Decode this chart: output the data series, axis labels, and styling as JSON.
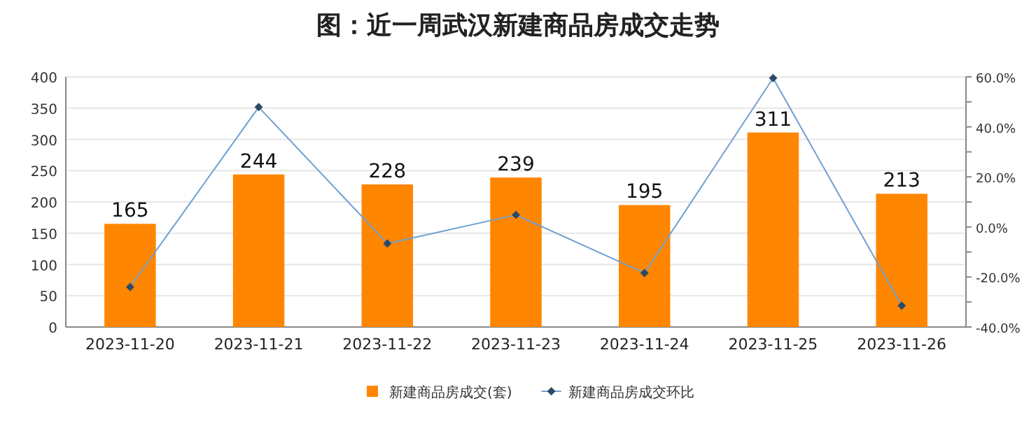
{
  "chart_data": {
    "type": "bar",
    "title": "图：近一周武汉新建商品房成交走势",
    "categories": [
      "2023-11-20",
      "2023-11-21",
      "2023-11-22",
      "2023-11-23",
      "2023-11-24",
      "2023-11-25",
      "2023-11-26"
    ],
    "series": [
      {
        "name": "新建商品房成交(套)",
        "color": "#ff8600",
        "values": [
          165,
          244,
          228,
          239,
          195,
          311,
          213
        ],
        "value_labels": [
          "165",
          "244",
          "228",
          "239",
          "195",
          "311",
          "213"
        ]
      },
      {
        "name": "新建商品房成交环比",
        "type": "line",
        "axis": "y2",
        "color": "#6fa0d0",
        "marker": "diamond",
        "values": [
          -24,
          47.9,
          -6.6,
          4.8,
          -18.4,
          59.5,
          -31.5
        ]
      }
    ],
    "ylim": [
      0,
      400
    ],
    "yticks": [
      0,
      50,
      100,
      150,
      200,
      250,
      300,
      350,
      400
    ],
    "y2lim": [
      -40,
      60
    ],
    "y2ticks": [
      {
        "value": -40,
        "label": "-40.0%"
      },
      {
        "value": -30,
        "label": null
      },
      {
        "value": -20,
        "label": "-20.0%"
      },
      {
        "value": -10,
        "label": null
      },
      {
        "value": 0,
        "label": "0.0%"
      },
      {
        "value": 10,
        "label": null
      },
      {
        "value": 20,
        "label": "20.0%"
      },
      {
        "value": 30,
        "label": null
      },
      {
        "value": 40,
        "label": "40.0%"
      },
      {
        "value": 50,
        "label": null
      },
      {
        "value": 60,
        "label": "60.0%"
      }
    ],
    "grid": "y",
    "legend": "bottom"
  }
}
